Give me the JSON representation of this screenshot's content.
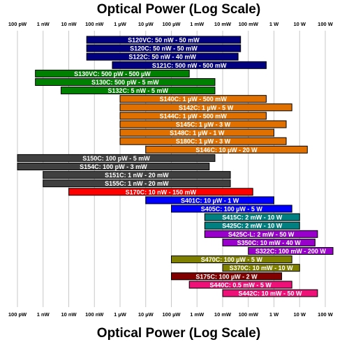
{
  "chart_data": {
    "type": "bar",
    "orientation": "horizontal-range",
    "title_top": "Optical Power (Log Scale)",
    "title_bottom": "Optical Power (Log Scale)",
    "x_scale": "log",
    "x_unit": "W",
    "xlim": [
      1e-10,
      100
    ],
    "grid": "vertical",
    "x_ticks": [
      {
        "value": 1e-10,
        "label": "100 pW"
      },
      {
        "value": 1e-09,
        "label": "1 nW"
      },
      {
        "value": 1e-08,
        "label": "10 nW"
      },
      {
        "value": 1e-07,
        "label": "100 nW"
      },
      {
        "value": 1e-06,
        "label": "1 µW"
      },
      {
        "value": 1e-05,
        "label": "10 µW"
      },
      {
        "value": 0.0001,
        "label": "100 µW"
      },
      {
        "value": 0.001,
        "label": "1 mW"
      },
      {
        "value": 0.01,
        "label": "10 mW"
      },
      {
        "value": 0.1,
        "label": "100 mW"
      },
      {
        "value": 1,
        "label": "1 W"
      },
      {
        "value": 10,
        "label": "10 W"
      },
      {
        "value": 100,
        "label": "100 W"
      }
    ],
    "bars": [
      {
        "label": "S120VC: 50 nW - 50 mW",
        "min": 5e-08,
        "max": 0.05,
        "color": "#000080"
      },
      {
        "label": "S120C: 50 nW - 50 mW",
        "min": 5e-08,
        "max": 0.05,
        "color": "#000080"
      },
      {
        "label": "S122C: 50 nW - 40 mW",
        "min": 5e-08,
        "max": 0.04,
        "color": "#000080"
      },
      {
        "label": "S121C: 500 nW - 500 mW",
        "min": 5e-07,
        "max": 0.5,
        "color": "#000080"
      },
      {
        "label": "S130VC: 500 pW - 500 µW",
        "min": 5e-10,
        "max": 0.0005,
        "color": "#008000"
      },
      {
        "label": "S130C: 500 pW - 5 mW",
        "min": 5e-10,
        "max": 0.005,
        "color": "#008000"
      },
      {
        "label": "S132C: 5 nW - 5 mW",
        "min": 5e-09,
        "max": 0.005,
        "color": "#008000"
      },
      {
        "label": "S140C: 1 µW - 500 mW",
        "min": 1e-06,
        "max": 0.5,
        "color": "#e07000"
      },
      {
        "label": "S142C: 1 µW - 5 W",
        "min": 1e-06,
        "max": 5,
        "color": "#e07000"
      },
      {
        "label": "S144C: 1 µW - 500 mW",
        "min": 1e-06,
        "max": 0.5,
        "color": "#e07000"
      },
      {
        "label": "S145C: 1 µW - 3 W",
        "min": 1e-06,
        "max": 3,
        "color": "#e07000"
      },
      {
        "label": "S148C: 1 µW - 1 W",
        "min": 1e-06,
        "max": 1,
        "color": "#e07000"
      },
      {
        "label": "S180C: 1 µW - 3 W",
        "min": 1e-06,
        "max": 3,
        "color": "#e07000"
      },
      {
        "label": "S146C: 10 µW - 20 W",
        "min": 1e-05,
        "max": 20,
        "color": "#e07000"
      },
      {
        "label": "S150C: 100 pW - 5 mW",
        "min": 1e-10,
        "max": 0.005,
        "color": "#404040"
      },
      {
        "label": "S154C: 100 pW - 3 mW",
        "min": 1e-10,
        "max": 0.003,
        "color": "#404040"
      },
      {
        "label": "S151C: 1 nW - 20 mW",
        "min": 1e-09,
        "max": 0.02,
        "color": "#404040"
      },
      {
        "label": "S155C: 1 nW - 20 mW",
        "min": 1e-09,
        "max": 0.02,
        "color": "#404040"
      },
      {
        "label": "S170C: 10 nW - 150 mW",
        "min": 1e-08,
        "max": 0.15,
        "color": "#ff0000"
      },
      {
        "label": "S401C: 10 µW - 1 W",
        "min": 1e-05,
        "max": 1,
        "color": "#0000ff"
      },
      {
        "label": "S405C: 100 µW - 5 W",
        "min": 0.0001,
        "max": 5,
        "color": "#0000ff"
      },
      {
        "label": "S415C: 2 mW - 10 W",
        "min": 0.002,
        "max": 10,
        "color": "#008080"
      },
      {
        "label": "S425C: 2 mW - 10 W",
        "min": 0.002,
        "max": 10,
        "color": "#008080"
      },
      {
        "label": "S425C-L: 2 mW - 50 W",
        "min": 0.002,
        "max": 50,
        "color": "#9900cc"
      },
      {
        "label": "S350C: 10 mW - 40 W",
        "min": 0.01,
        "max": 40,
        "color": "#9900cc"
      },
      {
        "label": "S322C: 100 mW - 200 W",
        "min": 0.1,
        "max": 200,
        "color": "#9900cc"
      },
      {
        "label": "S470C: 100 µW - 5 W",
        "min": 0.0001,
        "max": 5,
        "color": "#808000"
      },
      {
        "label": "S370C: 10 mW - 10 W",
        "min": 0.01,
        "max": 10,
        "color": "#808000"
      },
      {
        "label": "S175C: 100 µW - 2 W",
        "min": 0.0001,
        "max": 2,
        "color": "#800000"
      },
      {
        "label": "S440C: 0.5 mW - 5 W",
        "min": 0.0005,
        "max": 5,
        "color": "#ee1177"
      },
      {
        "label": "S442C: 10 mW - 50 W",
        "min": 0.01,
        "max": 50,
        "color": "#ee1177"
      }
    ]
  }
}
